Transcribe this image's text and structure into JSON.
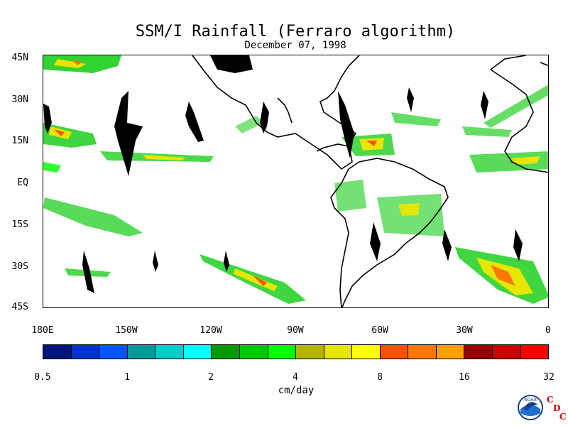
{
  "title": "SSM/I Rainfall (Ferraro algorithm)",
  "subtitle": "December 07, 1998",
  "lat_labels": [
    "45N",
    "30N",
    "15N",
    "EQ",
    "15S",
    "30S",
    "45S"
  ],
  "lon_labels": [
    "180E",
    "150W",
    "120W",
    "90W",
    "60W",
    "30W",
    "0"
  ],
  "colorbar": {
    "colors": [
      "#00157a",
      "#0033cc",
      "#0055ff",
      "#009999",
      "#00cccc",
      "#00ffff",
      "#009900",
      "#00c800",
      "#00ff00",
      "#b3b300",
      "#e6e600",
      "#ffff00",
      "#ff5000",
      "#ff7800",
      "#ffa000",
      "#960000",
      "#c80000",
      "#ff0000"
    ],
    "tick_labels": [
      "0.5",
      "1",
      "2",
      "4",
      "8",
      "16",
      "32"
    ],
    "unit": "cm/day"
  },
  "logo": {
    "noaa_text": "NOAA",
    "cdc_letters": [
      "C",
      "D",
      "C"
    ]
  }
}
